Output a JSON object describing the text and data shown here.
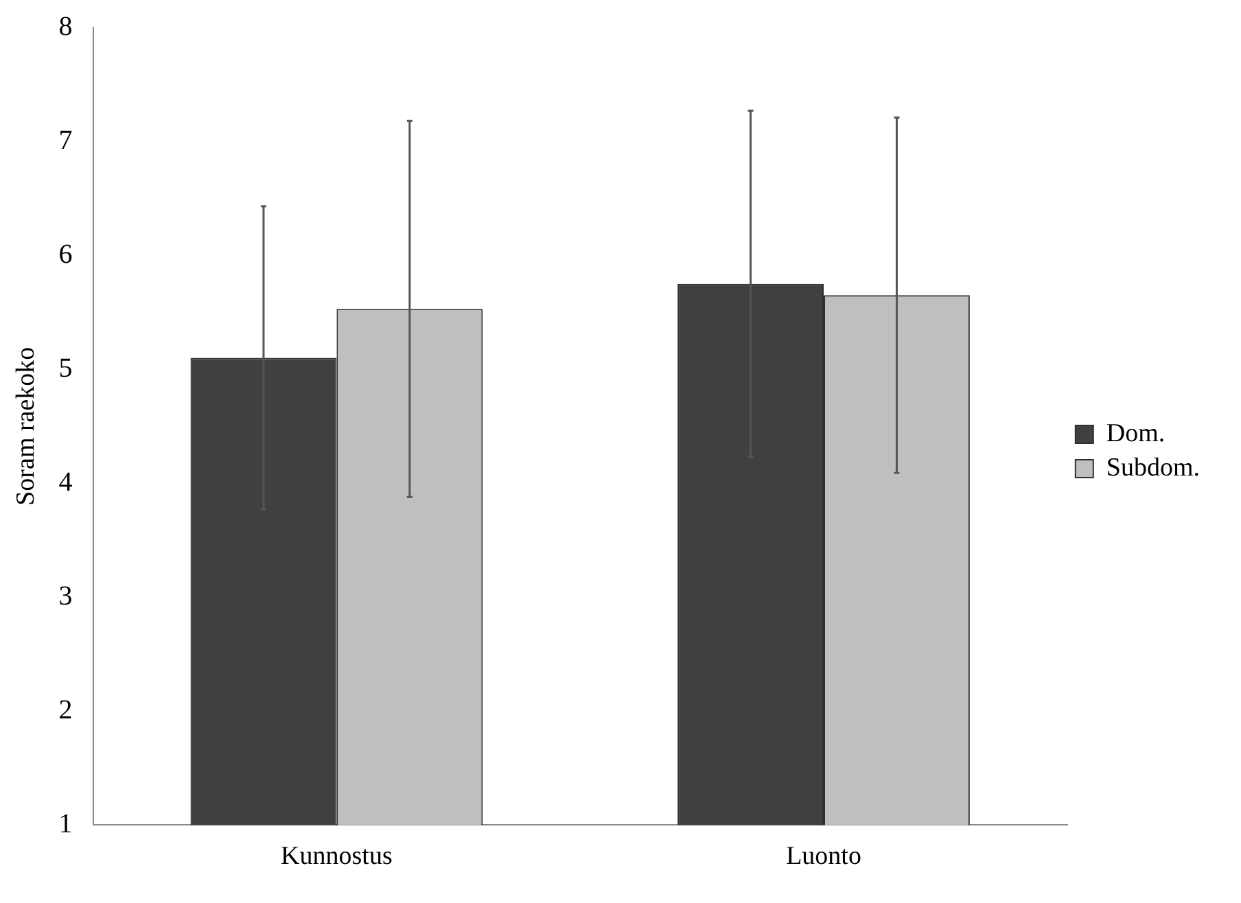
{
  "chart_data": {
    "type": "bar",
    "ylabel": "Soram raekoko",
    "categories": [
      "Kunnostus",
      "Luonto"
    ],
    "series": [
      {
        "name": "Dom.",
        "color": "#404040",
        "values": [
          5.1,
          5.75
        ],
        "errors": [
          1.33,
          1.52
        ]
      },
      {
        "name": "Subdom.",
        "color": "#bfbfbf",
        "values": [
          5.53,
          5.65
        ],
        "errors": [
          1.65,
          1.56
        ]
      }
    ],
    "ylim": [
      1,
      8
    ],
    "yticks": [
      1,
      2,
      3,
      4,
      5,
      6,
      7,
      8
    ],
    "grid": false,
    "legend": "right"
  }
}
